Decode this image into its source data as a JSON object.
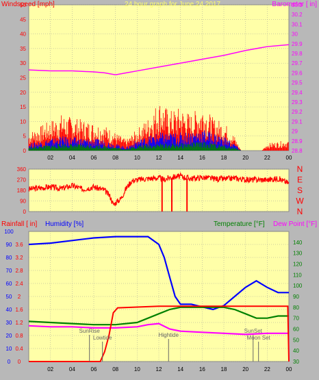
{
  "colors": {
    "background": "#b8b8b8",
    "plot_bg": "#ffffa8",
    "grid": "#9a9a9a",
    "wind_max": "#ff0000",
    "wind_avg": "#0000ff",
    "wind_min": "#008000",
    "barometer": "#ff00ff",
    "direction": "#ff0000",
    "rain": "#ff0000",
    "humidity": "#0000ff",
    "temperature": "#008000",
    "dewpoint": "#ff00ff",
    "markers": "#666666"
  },
  "chart_data": [
    {
      "type": "line",
      "title": "24 hour graph for   June 24 2017",
      "ylabel": "Windspeed [mph]",
      "y2label": "Barometer [ in]",
      "x_ticks": [
        "02",
        "04",
        "06",
        "08",
        "10",
        "12",
        "14",
        "16",
        "18",
        "20",
        "22",
        "00"
      ],
      "ylim": [
        0,
        50
      ],
      "y_ticks": [
        0,
        5,
        10,
        15,
        20,
        25,
        30,
        35,
        40,
        45,
        50
      ],
      "y2lim": [
        28.8,
        30.3
      ],
      "y2_ticks": [
        "28.8",
        "28.9",
        "29",
        "29.1",
        "29.2",
        "29.3",
        "29.4",
        "29.5",
        "29.6",
        "29.7",
        "29.8",
        "29.9",
        "30",
        "30.1",
        "30.2",
        "30.3"
      ],
      "grid": true,
      "series": [
        {
          "color_key": "wind_max",
          "segments": [
            [
              0,
              5
            ],
            [
              3,
              10
            ],
            [
              7,
              7
            ],
            [
              9,
              3
            ],
            [
              10,
              6
            ],
            [
              11,
              9
            ],
            [
              12,
              14
            ],
            [
              13,
              11
            ],
            [
              14,
              12
            ],
            [
              15,
              10
            ],
            [
              16,
              13
            ],
            [
              17,
              9
            ],
            [
              18,
              8
            ],
            [
              19,
              4
            ],
            [
              19.6,
              0
            ],
            [
              21.5,
              0
            ],
            [
              22,
              2
            ],
            [
              24,
              3
            ]
          ]
        },
        {
          "color_key": "wind_avg",
          "segments": [
            [
              0,
              2
            ],
            [
              3,
              4
            ],
            [
              7,
              3
            ],
            [
              9,
              1
            ],
            [
              10,
              3
            ],
            [
              12,
              5
            ],
            [
              14,
              5
            ],
            [
              16,
              6
            ],
            [
              18,
              4
            ],
            [
              19,
              2
            ],
            [
              19.6,
              0
            ],
            [
              24,
              0
            ]
          ]
        },
        {
          "color_key": "wind_min",
          "segments": [
            [
              0,
              1
            ],
            [
              3,
              2
            ],
            [
              7,
              1.5
            ],
            [
              9,
              0.5
            ],
            [
              10,
              1.5
            ],
            [
              12,
              2
            ],
            [
              14,
              2
            ],
            [
              16,
              2.5
            ],
            [
              18,
              1.5
            ],
            [
              19,
              1
            ],
            [
              19.6,
              0
            ],
            [
              24,
              0
            ]
          ]
        },
        {
          "color_key": "barometer",
          "axis": "y2",
          "points": [
            [
              0,
              29.63
            ],
            [
              2,
              29.62
            ],
            [
              4,
              29.62
            ],
            [
              6,
              29.61
            ],
            [
              7,
              29.6
            ],
            [
              8,
              29.58
            ],
            [
              9,
              29.6
            ],
            [
              10,
              29.62
            ],
            [
              12,
              29.66
            ],
            [
              14,
              29.7
            ],
            [
              16,
              29.74
            ],
            [
              18,
              29.78
            ],
            [
              20,
              29.83
            ],
            [
              22,
              29.87
            ],
            [
              24,
              29.89
            ]
          ]
        }
      ]
    },
    {
      "type": "scatter",
      "ylabel": "",
      "ylim": [
        0,
        360
      ],
      "y_ticks": [
        0,
        90,
        180,
        270,
        360
      ],
      "y2_labels": [
        "N",
        "W",
        "S",
        "E",
        "N"
      ],
      "grid": true,
      "points": [
        [
          0,
          190
        ],
        [
          1,
          200
        ],
        [
          2,
          210
        ],
        [
          3,
          195
        ],
        [
          4,
          220
        ],
        [
          5,
          190
        ],
        [
          6,
          210
        ],
        [
          7,
          180
        ],
        [
          7.5,
          130
        ],
        [
          7.8,
          60
        ],
        [
          8.5,
          110
        ],
        [
          9,
          200
        ],
        [
          9.5,
          260
        ],
        [
          10,
          270
        ],
        [
          11,
          280
        ],
        [
          12,
          285
        ],
        [
          12.5,
          270
        ],
        [
          13,
          290
        ],
        [
          14,
          300
        ],
        [
          15,
          280
        ],
        [
          16,
          290
        ],
        [
          17,
          280
        ],
        [
          18,
          275
        ],
        [
          19,
          285
        ],
        [
          20,
          270
        ],
        [
          21,
          270
        ],
        [
          22,
          270
        ],
        [
          23,
          280
        ],
        [
          24,
          240
        ]
      ]
    },
    {
      "type": "line",
      "ylabel": "Rainfall [ in]",
      "ylabel2": "Humidity [%]",
      "y2label": "Temperature [°F]",
      "y2label2": "Dew Point [°F]",
      "x_ticks": [
        "02",
        "04",
        "06",
        "08",
        "10",
        "12",
        "14",
        "16",
        "18",
        "20",
        "22",
        "00"
      ],
      "ylim": [
        0,
        4
      ],
      "y_ticks": [
        "0",
        "0.4",
        "0.8",
        "1.2",
        "1.6",
        "2",
        "2.4",
        "2.8",
        "3.2",
        "3.6"
      ],
      "humidity_ticks": [
        0,
        10,
        20,
        30,
        40,
        50,
        60,
        70,
        80,
        90,
        100
      ],
      "y2lim": [
        30,
        150
      ],
      "y2_ticks": [
        30,
        40,
        50,
        60,
        70,
        80,
        90,
        100,
        110,
        120,
        130,
        140
      ],
      "grid": true,
      "series": [
        {
          "color_key": "humidity",
          "axis": "humidity",
          "points": [
            [
              0,
              90
            ],
            [
              2,
              91
            ],
            [
              4,
              93
            ],
            [
              6,
              95
            ],
            [
              8,
              96
            ],
            [
              10,
              96
            ],
            [
              11,
              96
            ],
            [
              12,
              90
            ],
            [
              12.5,
              80
            ],
            [
              13,
              65
            ],
            [
              13.5,
              50
            ],
            [
              14,
              44
            ],
            [
              15,
              44
            ],
            [
              16,
              42
            ],
            [
              17,
              40
            ],
            [
              18,
              43
            ],
            [
              19,
              50
            ],
            [
              20,
              57
            ],
            [
              21,
              62
            ],
            [
              22,
              57
            ],
            [
              23,
              53
            ],
            [
              24,
              53
            ]
          ]
        },
        {
          "color_key": "temperature",
          "axis": "y2",
          "points": [
            [
              0,
              67
            ],
            [
              2,
              66
            ],
            [
              4,
              65
            ],
            [
              6,
              64
            ],
            [
              8,
              64
            ],
            [
              10,
              66
            ],
            [
              11,
              70
            ],
            [
              12,
              74
            ],
            [
              13,
              78
            ],
            [
              14,
              80
            ],
            [
              16,
              80
            ],
            [
              18,
              80
            ],
            [
              19,
              78
            ],
            [
              20,
              74
            ],
            [
              21,
              70
            ],
            [
              22,
              70
            ],
            [
              23,
              72
            ],
            [
              24,
              72
            ]
          ]
        },
        {
          "color_key": "dewpoint",
          "axis": "y2",
          "points": [
            [
              0,
              63
            ],
            [
              2,
              62
            ],
            [
              4,
              62
            ],
            [
              6,
              61
            ],
            [
              8,
              61
            ],
            [
              10,
              62
            ],
            [
              11,
              64
            ],
            [
              12,
              65
            ],
            [
              13,
              60
            ],
            [
              14,
              58
            ],
            [
              16,
              57
            ],
            [
              18,
              56
            ],
            [
              20,
              55
            ],
            [
              22,
              56
            ],
            [
              24,
              56
            ]
          ]
        },
        {
          "color_key": "rain",
          "axis": "y",
          "points": [
            [
              0,
              0
            ],
            [
              6.6,
              0
            ],
            [
              7,
              0.3
            ],
            [
              7.4,
              0.8
            ],
            [
              7.8,
              1.5
            ],
            [
              8.2,
              1.65
            ],
            [
              12,
              1.7
            ],
            [
              18,
              1.7
            ],
            [
              23.9,
              1.7
            ],
            [
              24,
              0
            ]
          ]
        }
      ],
      "markers": [
        {
          "label": "SunRise",
          "x": 5.6
        },
        {
          "label": "Lowtide",
          "x": 6.8
        },
        {
          "label": "Hightide",
          "x": 12.9
        },
        {
          "label": "SunSet",
          "x": 20.7
        },
        {
          "label": "Moon Set",
          "x": 21.2
        }
      ]
    }
  ]
}
